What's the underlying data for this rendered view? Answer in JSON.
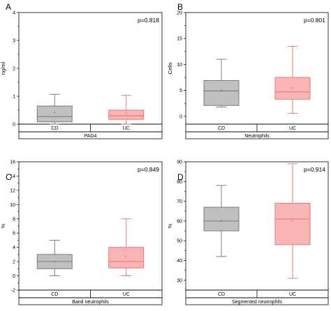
{
  "chart_data": [
    {
      "type": "box",
      "panel": "A",
      "ylabel": "ng/ml",
      "ylim": [
        0,
        4
      ],
      "yticks": [
        0,
        1,
        2,
        3,
        4
      ],
      "annotation": "p=0.818",
      "group_label": "PAD4",
      "categories": [
        "CD",
        "UC"
      ],
      "boxes": [
        {
          "category": "CD",
          "min": 0.0,
          "q1": 0.08,
          "median": 0.27,
          "q3": 0.65,
          "max": 1.07,
          "mean": 0.42
        },
        {
          "category": "UC",
          "min": 0.0,
          "q1": 0.17,
          "median": 0.3,
          "q3": 0.5,
          "max": 1.03,
          "mean": 0.38
        }
      ]
    },
    {
      "type": "box",
      "panel": "B",
      "ylabel": "Cells",
      "ylim": [
        -1.5,
        20
      ],
      "yticks": [
        0,
        5,
        10,
        15,
        20
      ],
      "annotation": "p=0.801",
      "group_label": "Neutrophils",
      "categories": [
        "CD",
        "UC"
      ],
      "boxes": [
        {
          "category": "CD",
          "min": 1.8,
          "q1": 2.1,
          "median": 4.9,
          "q3": 6.9,
          "max": 11.0,
          "mean": 5.0
        },
        {
          "category": "UC",
          "min": 0.6,
          "q1": 3.3,
          "median": 4.7,
          "q3": 7.5,
          "max": 13.5,
          "mean": 5.5
        }
      ]
    },
    {
      "type": "box",
      "panel": "C",
      "ylabel": "%",
      "ylim": [
        -2,
        16
      ],
      "yticks": [
        -2,
        0,
        2,
        4,
        6,
        8,
        10,
        12,
        14,
        16
      ],
      "annotation": "p=0.849",
      "group_label": "Band neutrophils",
      "categories": [
        "CD",
        "UC"
      ],
      "boxes": [
        {
          "category": "CD",
          "min": 0.0,
          "q1": 1.0,
          "median": 2.0,
          "q3": 3.0,
          "max": 5.0,
          "mean": 2.0
        },
        {
          "category": "UC",
          "min": 0.0,
          "q1": 1.1,
          "median": 2.0,
          "q3": 4.0,
          "max": 8.0,
          "mean": 2.7
        }
      ]
    },
    {
      "type": "box",
      "panel": "D",
      "ylabel": "%",
      "ylim": [
        25,
        90
      ],
      "yticks": [
        30,
        40,
        50,
        60,
        70,
        80,
        90
      ],
      "annotation": "p=0.914",
      "group_label": "Segmented neutrophils",
      "categories": [
        "CD",
        "UC"
      ],
      "boxes": [
        {
          "category": "CD",
          "min": 42,
          "q1": 55,
          "median": 60,
          "q3": 67,
          "max": 78,
          "mean": 60
        },
        {
          "category": "UC",
          "min": 31,
          "q1": 48,
          "median": 61,
          "q3": 69,
          "max": 89,
          "mean": 60
        }
      ]
    }
  ],
  "colors": {
    "cd_fill": "#c0c0c0",
    "cd_stroke": "#707070",
    "uc_fill": "#f9b4b4",
    "uc_stroke": "#f06a6a"
  }
}
